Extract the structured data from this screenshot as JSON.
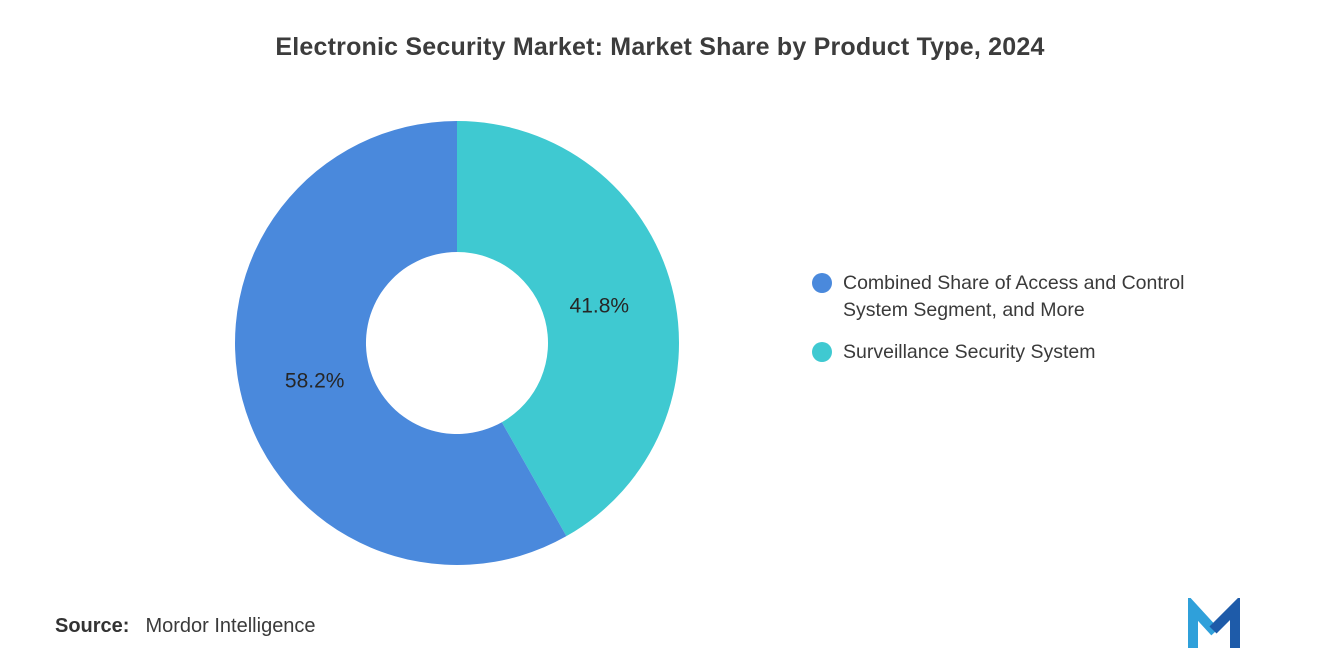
{
  "title": "Electronic Security Market: Market Share by Product Type, 2024",
  "chart_data": {
    "type": "pie",
    "donut": true,
    "title": "Electronic Security Market: Market Share by Product Type, 2024",
    "categories": [
      "Combined Share of Access and Control System Segment, and More",
      "Surveillance Security System"
    ],
    "values": [
      58.2,
      41.8
    ],
    "slices": [
      {
        "category": "Surveillance Security System",
        "value": 41.8,
        "label": "41.8%",
        "color": "#3FC9D1"
      },
      {
        "category": "Combined Share of Access and Control System Segment, and More",
        "value": 58.2,
        "label": "58.2%",
        "color": "#4A89DC"
      }
    ],
    "start_angle_deg": 0,
    "direction": "clockwise",
    "inner_radius_ratio": 0.41,
    "legend_position": "right"
  },
  "legend": {
    "items": [
      {
        "label": "Combined Share of Access and Control System Segment, and More",
        "color": "#4A89DC"
      },
      {
        "label": "Surveillance Security System",
        "color": "#3FC9D1"
      }
    ]
  },
  "source": {
    "label": "Source:",
    "value": "Mordor Intelligence"
  },
  "logo": {
    "name": "mordor-intelligence-logo",
    "colors": [
      "#2FA0DA",
      "#1E5BA9"
    ]
  }
}
